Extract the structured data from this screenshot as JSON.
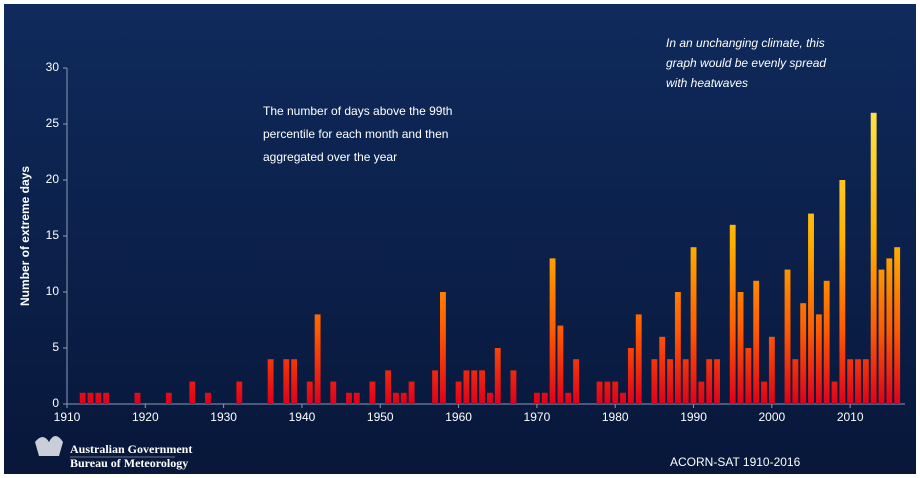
{
  "chart_data": {
    "type": "bar",
    "y_label": "Number of extreme days",
    "annotation": [
      "The number of days above the 99th",
      "percentile for each month and then",
      "aggregated over the year"
    ],
    "note": [
      "In an unchanging climate, this",
      "graph would be evenly spread",
      "with heatwaves"
    ],
    "x": [
      1912,
      1913,
      1914,
      1915,
      1919,
      1923,
      1926,
      1928,
      1932,
      1936,
      1938,
      1939,
      1941,
      1942,
      1944,
      1946,
      1947,
      1949,
      1951,
      1952,
      1953,
      1954,
      1957,
      1958,
      1960,
      1961,
      1962,
      1963,
      1964,
      1965,
      1967,
      1970,
      1971,
      1972,
      1973,
      1974,
      1975,
      1978,
      1979,
      1980,
      1981,
      1982,
      1983,
      1985,
      1986,
      1987,
      1988,
      1989,
      1990,
      1991,
      1992,
      1993,
      1995,
      1996,
      1997,
      1998,
      1999,
      2000,
      2002,
      2003,
      2004,
      2005,
      2006,
      2007,
      2008,
      2009,
      2010,
      2011,
      2012,
      2013,
      2014,
      2015,
      2016
    ],
    "values": [
      1,
      1,
      1,
      1,
      1,
      1,
      2,
      1,
      2,
      4,
      4,
      4,
      2,
      8,
      2,
      1,
      1,
      2,
      3,
      1,
      1,
      2,
      3,
      10,
      2,
      3,
      3,
      3,
      1,
      5,
      3,
      1,
      1,
      13,
      7,
      1,
      4,
      2,
      2,
      2,
      1,
      5,
      8,
      4,
      6,
      4,
      10,
      4,
      14,
      2,
      4,
      4,
      16,
      10,
      5,
      11,
      2,
      6,
      12,
      4,
      9,
      17,
      8,
      11,
      2,
      20,
      4,
      4,
      4,
      26,
      12,
      13,
      14
    ],
    "xlim": [
      1910,
      2017
    ],
    "xticks": [
      1910,
      1920,
      1930,
      1940,
      1950,
      1960,
      1970,
      1980,
      1990,
      2000,
      2010
    ],
    "ylim": [
      0,
      30
    ],
    "yticks": [
      0,
      5,
      10,
      15,
      20,
      25,
      30
    ],
    "grid": false
  },
  "footer": {
    "logo": [
      "Australian Government",
      "Bureau of Meteorology"
    ],
    "source": "ACORN-SAT 1910-2016"
  }
}
